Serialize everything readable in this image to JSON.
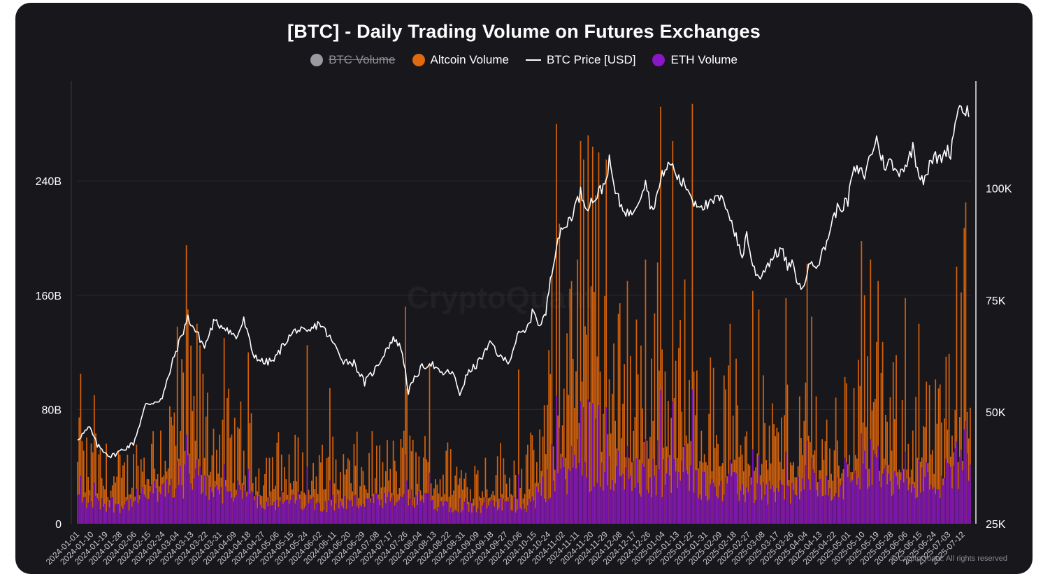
{
  "chart_data": {
    "type": "bar+line",
    "title": "[BTC] - Daily Trading Volume on Futures Exchanges",
    "legend": [
      {
        "name": "BTC Volume",
        "color": "#9a9aa0",
        "shape": "dot",
        "hidden": true
      },
      {
        "name": "Altcoin Volume",
        "color": "#e06a10",
        "shape": "dot",
        "hidden": false
      },
      {
        "name": "BTC Price [USD]",
        "color": "#ffffff",
        "shape": "line",
        "hidden": false
      },
      {
        "name": "ETH Volume",
        "color": "#8b16c8",
        "shape": "dot",
        "hidden": false
      }
    ],
    "y_left": {
      "ticks": [
        "0",
        "80B",
        "160B",
        "240B"
      ],
      "tick_values": [
        0,
        80,
        160,
        240
      ],
      "range": [
        0,
        310
      ],
      "unit": "B"
    },
    "y_right": {
      "ticks": [
        "25K",
        "50K",
        "75K",
        "100K"
      ],
      "tick_values": [
        25000,
        50000,
        75000,
        100000
      ],
      "range": [
        25000,
        124000
      ]
    },
    "x_labels": [
      "2024-01-01",
      "2024-01-10",
      "2024-01-19",
      "2024-01-28",
      "2024-02-06",
      "2024-02-15",
      "2024-02-24",
      "2024-03-04",
      "2024-03-13",
      "2024-03-22",
      "2024-03-31",
      "2024-04-09",
      "2024-04-18",
      "2024-04-27",
      "2024-05-06",
      "2024-05-15",
      "2024-05-24",
      "2024-06-02",
      "2024-06-11",
      "2024-06-20",
      "2024-06-29",
      "2024-07-08",
      "2024-07-17",
      "2024-07-26",
      "2024-08-04",
      "2024-08-13",
      "2024-08-22",
      "2024-08-31",
      "2024-09-09",
      "2024-09-18",
      "2024-09-27",
      "2024-10-06",
      "2024-10-15",
      "2024-10-24",
      "2024-11-02",
      "2024-11-11",
      "2024-11-20",
      "2024-11-29",
      "2024-12-08",
      "2024-12-17",
      "2024-12-26",
      "2025-01-04",
      "2025-01-13",
      "2025-01-22",
      "2025-01-31",
      "2025-02-09",
      "2025-02-18",
      "2025-02-27",
      "2025-03-08",
      "2025-03-17",
      "2025-03-26",
      "2025-04-04",
      "2025-04-13",
      "2025-04-22",
      "2025-05-01",
      "2025-05-10",
      "2025-05-19",
      "2025-05-28",
      "2025-06-06",
      "2025-06-15",
      "2025-06-24",
      "2025-07-03",
      "2025-07-12"
    ],
    "btc_price_keypoints": [
      {
        "day": 0,
        "value": 44000
      },
      {
        "day": 8,
        "value": 46500
      },
      {
        "day": 13,
        "value": 42500
      },
      {
        "day": 22,
        "value": 40000
      },
      {
        "day": 37,
        "value": 43000
      },
      {
        "day": 45,
        "value": 51500
      },
      {
        "day": 56,
        "value": 53000
      },
      {
        "day": 64,
        "value": 62500
      },
      {
        "day": 73,
        "value": 71000
      },
      {
        "day": 80,
        "value": 67000
      },
      {
        "day": 84,
        "value": 64500
      },
      {
        "day": 90,
        "value": 70000
      },
      {
        "day": 98,
        "value": 69000
      },
      {
        "day": 105,
        "value": 66500
      },
      {
        "day": 110,
        "value": 70500
      },
      {
        "day": 116,
        "value": 63000
      },
      {
        "day": 123,
        "value": 61000
      },
      {
        "day": 130,
        "value": 61500
      },
      {
        "day": 138,
        "value": 66000
      },
      {
        "day": 145,
        "value": 68500
      },
      {
        "day": 152,
        "value": 67500
      },
      {
        "day": 160,
        "value": 70000
      },
      {
        "day": 168,
        "value": 66000
      },
      {
        "day": 176,
        "value": 61500
      },
      {
        "day": 183,
        "value": 61000
      },
      {
        "day": 190,
        "value": 56500
      },
      {
        "day": 198,
        "value": 60000
      },
      {
        "day": 205,
        "value": 64500
      },
      {
        "day": 210,
        "value": 66500
      },
      {
        "day": 215,
        "value": 63500
      },
      {
        "day": 219,
        "value": 54500
      },
      {
        "day": 224,
        "value": 58000
      },
      {
        "day": 228,
        "value": 60000
      },
      {
        "day": 234,
        "value": 61000
      },
      {
        "day": 240,
        "value": 58500
      },
      {
        "day": 248,
        "value": 59000
      },
      {
        "day": 253,
        "value": 54000
      },
      {
        "day": 258,
        "value": 58500
      },
      {
        "day": 264,
        "value": 60500
      },
      {
        "day": 270,
        "value": 63500
      },
      {
        "day": 274,
        "value": 65500
      },
      {
        "day": 280,
        "value": 62000
      },
      {
        "day": 286,
        "value": 61500
      },
      {
        "day": 291,
        "value": 67000
      },
      {
        "day": 297,
        "value": 68000
      },
      {
        "day": 302,
        "value": 73000
      },
      {
        "day": 306,
        "value": 69000
      },
      {
        "day": 310,
        "value": 72000
      },
      {
        "day": 313,
        "value": 80000
      },
      {
        "day": 318,
        "value": 89000
      },
      {
        "day": 322,
        "value": 91000
      },
      {
        "day": 327,
        "value": 94000
      },
      {
        "day": 333,
        "value": 99000
      },
      {
        "day": 337,
        "value": 96000
      },
      {
        "day": 343,
        "value": 98000
      },
      {
        "day": 349,
        "value": 101000
      },
      {
        "day": 352,
        "value": 106000
      },
      {
        "day": 356,
        "value": 99000
      },
      {
        "day": 360,
        "value": 96000
      },
      {
        "day": 366,
        "value": 94000
      },
      {
        "day": 372,
        "value": 98000
      },
      {
        "day": 376,
        "value": 102000
      },
      {
        "day": 380,
        "value": 95000
      },
      {
        "day": 385,
        "value": 100000
      },
      {
        "day": 388,
        "value": 104000
      },
      {
        "day": 393,
        "value": 105500
      },
      {
        "day": 398,
        "value": 102000
      },
      {
        "day": 404,
        "value": 100000
      },
      {
        "day": 408,
        "value": 97000
      },
      {
        "day": 412,
        "value": 96500
      },
      {
        "day": 418,
        "value": 96000
      },
      {
        "day": 424,
        "value": 98000
      },
      {
        "day": 430,
        "value": 96000
      },
      {
        "day": 436,
        "value": 89000
      },
      {
        "day": 440,
        "value": 84500
      },
      {
        "day": 443,
        "value": 90000
      },
      {
        "day": 447,
        "value": 82500
      },
      {
        "day": 451,
        "value": 80000
      },
      {
        "day": 456,
        "value": 82500
      },
      {
        "day": 460,
        "value": 84500
      },
      {
        "day": 466,
        "value": 86500
      },
      {
        "day": 470,
        "value": 82500
      },
      {
        "day": 473,
        "value": 83000
      },
      {
        "day": 476,
        "value": 80000
      },
      {
        "day": 479,
        "value": 77000
      },
      {
        "day": 482,
        "value": 80000
      },
      {
        "day": 486,
        "value": 84000
      },
      {
        "day": 490,
        "value": 83000
      },
      {
        "day": 495,
        "value": 87000
      },
      {
        "day": 500,
        "value": 93000
      },
      {
        "day": 503,
        "value": 95500
      },
      {
        "day": 506,
        "value": 96000
      },
      {
        "day": 510,
        "value": 97000
      },
      {
        "day": 513,
        "value": 103500
      },
      {
        "day": 517,
        "value": 104000
      },
      {
        "day": 521,
        "value": 103000
      },
      {
        "day": 525,
        "value": 107500
      },
      {
        "day": 529,
        "value": 111000
      },
      {
        "day": 534,
        "value": 105000
      },
      {
        "day": 538,
        "value": 106000
      },
      {
        "day": 542,
        "value": 103500
      },
      {
        "day": 546,
        "value": 104500
      },
      {
        "day": 550,
        "value": 106000
      },
      {
        "day": 553,
        "value": 109500
      },
      {
        "day": 556,
        "value": 104500
      },
      {
        "day": 560,
        "value": 102000
      },
      {
        "day": 564,
        "value": 105000
      },
      {
        "day": 567,
        "value": 107000
      },
      {
        "day": 571,
        "value": 106500
      },
      {
        "day": 575,
        "value": 108500
      },
      {
        "day": 578,
        "value": 108000
      },
      {
        "day": 582,
        "value": 117000
      },
      {
        "day": 585,
        "value": 118500
      },
      {
        "day": 588,
        "value": 117000
      },
      {
        "day": 590,
        "value": 117500
      }
    ],
    "volume_envelope_billions": [
      {
        "day": 0,
        "alt": 42,
        "eth": 18
      },
      {
        "day": 30,
        "alt": 30,
        "eth": 13
      },
      {
        "day": 55,
        "alt": 55,
        "eth": 24
      },
      {
        "day": 70,
        "alt": 72,
        "eth": 30
      },
      {
        "day": 90,
        "alt": 62,
        "eth": 26
      },
      {
        "day": 120,
        "alt": 40,
        "eth": 17
      },
      {
        "day": 160,
        "alt": 35,
        "eth": 15
      },
      {
        "day": 200,
        "alt": 36,
        "eth": 15
      },
      {
        "day": 220,
        "alt": 40,
        "eth": 17
      },
      {
        "day": 260,
        "alt": 32,
        "eth": 13
      },
      {
        "day": 300,
        "alt": 36,
        "eth": 14
      },
      {
        "day": 312,
        "alt": 72,
        "eth": 28
      },
      {
        "day": 330,
        "alt": 110,
        "eth": 40
      },
      {
        "day": 350,
        "alt": 100,
        "eth": 40
      },
      {
        "day": 370,
        "alt": 80,
        "eth": 30
      },
      {
        "day": 390,
        "alt": 92,
        "eth": 34
      },
      {
        "day": 410,
        "alt": 78,
        "eth": 30
      },
      {
        "day": 440,
        "alt": 65,
        "eth": 24
      },
      {
        "day": 470,
        "alt": 55,
        "eth": 22
      },
      {
        "day": 485,
        "alt": 72,
        "eth": 30
      },
      {
        "day": 500,
        "alt": 50,
        "eth": 21
      },
      {
        "day": 515,
        "alt": 80,
        "eth": 42
      },
      {
        "day": 540,
        "alt": 68,
        "eth": 34
      },
      {
        "day": 570,
        "alt": 58,
        "eth": 30
      },
      {
        "day": 590,
        "alt": 100,
        "eth": 48
      }
    ],
    "volume_spikes_billions": [
      {
        "day": 2,
        "alt": 105
      },
      {
        "day": 11,
        "alt": 90
      },
      {
        "day": 66,
        "alt": 138
      },
      {
        "day": 72,
        "alt": 195
      },
      {
        "day": 73,
        "alt": 150
      },
      {
        "day": 79,
        "alt": 140
      },
      {
        "day": 81,
        "alt": 125
      },
      {
        "day": 97,
        "alt": 130
      },
      {
        "day": 113,
        "alt": 120
      },
      {
        "day": 152,
        "alt": 125
      },
      {
        "day": 167,
        "alt": 95
      },
      {
        "day": 217,
        "alt": 152
      },
      {
        "day": 218,
        "alt": 95
      },
      {
        "day": 233,
        "alt": 112
      },
      {
        "day": 292,
        "alt": 108
      },
      {
        "day": 314,
        "alt": 175
      },
      {
        "day": 317,
        "alt": 280
      },
      {
        "day": 319,
        "alt": 210
      },
      {
        "day": 327,
        "alt": 170
      },
      {
        "day": 331,
        "alt": 185
      },
      {
        "day": 333,
        "alt": 268
      },
      {
        "day": 335,
        "alt": 255
      },
      {
        "day": 338,
        "alt": 272
      },
      {
        "day": 341,
        "alt": 264
      },
      {
        "day": 343,
        "alt": 230
      },
      {
        "day": 345,
        "alt": 260
      },
      {
        "day": 350,
        "alt": 255
      },
      {
        "day": 364,
        "alt": 170
      },
      {
        "day": 370,
        "alt": 143
      },
      {
        "day": 376,
        "alt": 185
      },
      {
        "day": 384,
        "alt": 183
      },
      {
        "day": 386,
        "alt": 292
      },
      {
        "day": 394,
        "alt": 268
      },
      {
        "day": 402,
        "alt": 171
      },
      {
        "day": 407,
        "alt": 294
      },
      {
        "day": 432,
        "alt": 140
      },
      {
        "day": 447,
        "alt": 163
      },
      {
        "day": 451,
        "alt": 150
      },
      {
        "day": 469,
        "alt": 158
      },
      {
        "day": 483,
        "alt": 182
      },
      {
        "day": 486,
        "alt": 145
      },
      {
        "day": 519,
        "alt": 198
      },
      {
        "day": 521,
        "alt": 160
      },
      {
        "day": 525,
        "alt": 185
      },
      {
        "day": 530,
        "alt": 170
      },
      {
        "day": 548,
        "alt": 158
      },
      {
        "day": 557,
        "alt": 140
      },
      {
        "day": 575,
        "alt": 117
      },
      {
        "day": 582,
        "alt": 180
      },
      {
        "day": 585,
        "alt": 162
      },
      {
        "day": 587,
        "alt": 207
      },
      {
        "day": 588,
        "alt": 225
      }
    ],
    "series_hidden": [
      "BTC Volume"
    ],
    "watermark": "CryptoQuant",
    "copyright": "© CryptoQuant. All rights reserved"
  }
}
